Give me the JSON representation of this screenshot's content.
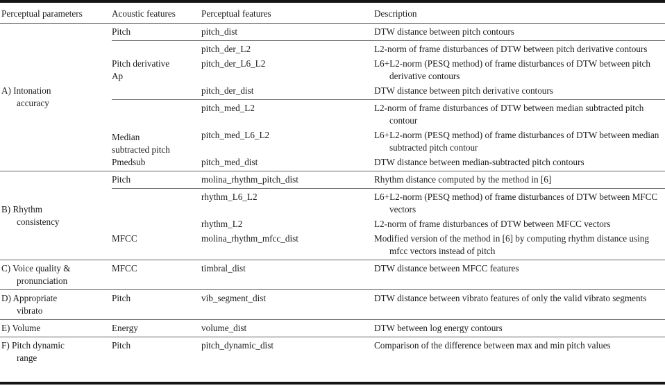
{
  "colors": {
    "text": "#1c1c1c",
    "frame_rule": "#151515",
    "inner_rule": "#606060",
    "background": "#ffffff"
  },
  "table": {
    "headers": {
      "col1": "Perceptual parameters",
      "col2": "Acoustic features",
      "col3": "Perceptual features",
      "col4": "Description"
    },
    "groups": [
      {
        "label": "A) Intonation accuracy",
        "subblocks": [
          {
            "acoustic": "Pitch",
            "rows": [
              {
                "feature": "pitch_dist",
                "desc": "DTW distance between pitch contours"
              }
            ]
          },
          {
            "acoustic": "Pitch derivative Ap",
            "rows": [
              {
                "feature": "pitch_der_L2",
                "desc": "L2-norm of frame disturbances of DTW between pitch derivative contours"
              },
              {
                "feature": "pitch_der_L6_L2",
                "desc": "L6+L2-norm (PESQ method) of frame disturbances of DTW between pitch derivative contours"
              },
              {
                "feature": "pitch_der_dist",
                "desc": "DTW distance between pitch derivative contours"
              }
            ]
          },
          {
            "acoustic": "Median subtracted pitch Pmedsub",
            "rows": [
              {
                "feature": "pitch_med_L2",
                "desc": "L2-norm of frame disturbances of DTW between median subtracted pitch contour"
              },
              {
                "feature": "pitch_med_L6_L2",
                "desc": "L6+L2-norm (PESQ method) of frame disturbances of DTW between median subtracted pitch contour"
              },
              {
                "feature": "pitch_med_dist",
                "desc": "DTW distance between median-subtracted pitch contours"
              }
            ]
          }
        ]
      },
      {
        "label": "B) Rhythm consistency",
        "subblocks": [
          {
            "acoustic": "Pitch",
            "rows": [
              {
                "feature": "molina_rhythm_pitch_dist",
                "desc": "Rhythm distance computed by the method in [6]"
              }
            ]
          },
          {
            "acoustic": "MFCC",
            "rows": [
              {
                "feature": "rhythm_L6_L2",
                "desc": "L6+L2-norm (PESQ method) of frame disturbances of DTW between MFCC vectors"
              },
              {
                "feature": "rhythm_L2",
                "desc": "L2-norm of frame disturbances of DTW between MFCC vectors"
              },
              {
                "feature": "molina_rhythm_mfcc_dist",
                "desc": "Modified version of the method in [6] by computing rhythm distance using mfcc vectors instead of pitch"
              }
            ]
          }
        ]
      },
      {
        "label": "C) Voice quality & pronunciation",
        "subblocks": [
          {
            "acoustic": "MFCC",
            "rows": [
              {
                "feature": "timbral_dist",
                "desc": "DTW distance between MFCC features"
              }
            ]
          }
        ]
      },
      {
        "label": "D) Appropriate vibrato",
        "subblocks": [
          {
            "acoustic": "Pitch",
            "rows": [
              {
                "feature": "vib_segment_dist",
                "desc": "DTW distance between vibrato features of only the valid vibrato segments"
              }
            ]
          }
        ]
      },
      {
        "label": "E) Volume",
        "subblocks": [
          {
            "acoustic": "Energy",
            "rows": [
              {
                "feature": "volume_dist",
                "desc": "DTW between log energy contours"
              }
            ]
          }
        ]
      },
      {
        "label": "F) Pitch dynamic range",
        "subblocks": [
          {
            "acoustic": "Pitch",
            "rows": [
              {
                "feature": "pitch_dynamic_dist",
                "desc": "Comparison of the difference between max and min pitch values"
              }
            ]
          }
        ]
      }
    ]
  }
}
